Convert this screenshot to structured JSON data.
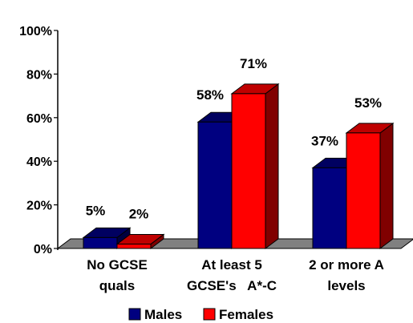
{
  "chart_data": {
    "type": "bar",
    "categories": [
      [
        "No GCSE",
        "quals"
      ],
      [
        "At least 5",
        "GCSE's   A*-C"
      ],
      [
        "2 or more A",
        "levels"
      ]
    ],
    "series": [
      {
        "name": "Males",
        "values": [
          5,
          58,
          37
        ],
        "labels": [
          "5%",
          "58%",
          "37%"
        ],
        "color": "#000080"
      },
      {
        "name": "Females",
        "values": [
          2,
          71,
          53
        ],
        "labels": [
          "2%",
          "71%",
          "53%"
        ],
        "color": "#ff0000"
      }
    ],
    "ylim": [
      0,
      100
    ],
    "yticks": [
      "0%",
      "20%",
      "40%",
      "60%",
      "80%",
      "100%"
    ],
    "ytick_values": [
      0,
      20,
      40,
      60,
      80,
      100
    ],
    "legend_position": "bottom",
    "grid": false,
    "style": "3d-bar",
    "floor_color": "#808080"
  }
}
